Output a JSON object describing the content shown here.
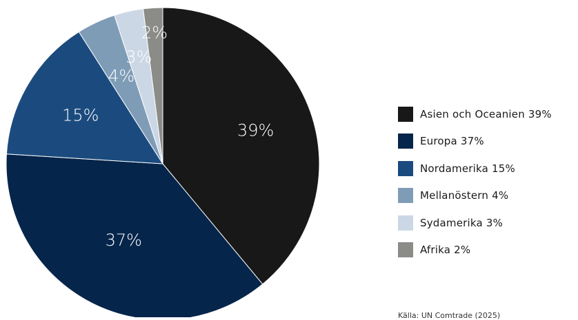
{
  "chart_data": {
    "type": "pie",
    "title": "",
    "categories": [
      "Asien och Oceanien",
      "Europa",
      "Nordamerika",
      "Mellanöstern",
      "Sydamerika",
      "Afrika"
    ],
    "values": [
      39,
      37,
      15,
      4,
      3,
      2
    ],
    "slice_labels": [
      "39%",
      "37%",
      "15%",
      "4%",
      "3%",
      "2%"
    ],
    "colors": [
      "#181818",
      "#06254b",
      "#1b4b7e",
      "#7f9cb7",
      "#cbd7e5",
      "#8b8b87"
    ],
    "label_colors": [
      "#ffffff",
      "#ffffff",
      "#ffffff",
      "#ffffff",
      "#ffffff",
      "#ffffff"
    ],
    "legend_position": "right",
    "legend": [
      "Asien och Oceanien 39%",
      "Europa 37%",
      "Nordamerika 15%",
      "Mellanöstern 4%",
      "Sydamerika 3%",
      "Afrika 2%"
    ],
    "source": "Källa: UN Comtrade (2025)"
  }
}
